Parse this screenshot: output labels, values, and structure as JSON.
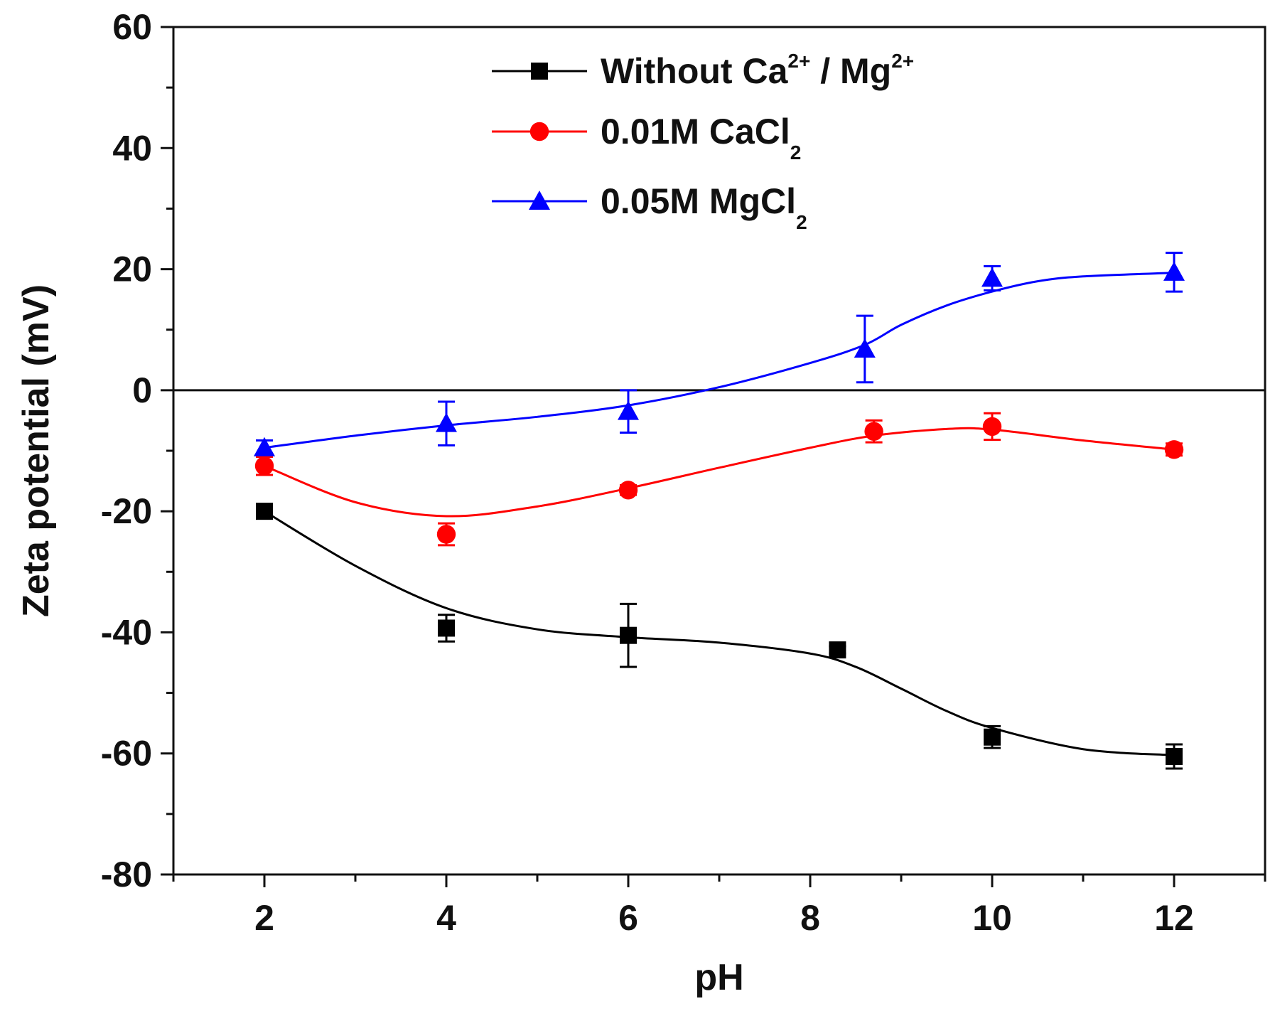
{
  "chart_data": {
    "type": "scatter",
    "title": "",
    "xlabel": "pH",
    "ylabel": "Zeta potential (mV)",
    "xlim": [
      1,
      13
    ],
    "ylim": [
      -80,
      60
    ],
    "x_ticks": [
      2,
      4,
      6,
      8,
      10,
      12
    ],
    "x_tick_labels": [
      "2",
      "4",
      "6",
      "8",
      "10",
      "12"
    ],
    "y_ticks": [
      -80,
      -60,
      -40,
      -20,
      0,
      20,
      40,
      60
    ],
    "y_tick_labels": [
      "-80",
      "-60",
      "-40",
      "-20",
      "0",
      "20",
      "40",
      "60"
    ],
    "zero_line": true,
    "grid": false,
    "legend_position": "top-center",
    "series": [
      {
        "name": "Without Ca / Mg",
        "name_parts": {
          "base": "Without Ca",
          "sup1": "2+",
          "mid": " / Mg",
          "sup2": "2+"
        },
        "color": "#000000",
        "marker": "square",
        "x": [
          2,
          4,
          6,
          8.3,
          10,
          12
        ],
        "y": [
          -20,
          -39.3,
          -40.5,
          -42.9,
          -57.3,
          -60.5
        ],
        "error": [
          1.2,
          2.2,
          5.2,
          0.6,
          1.8,
          2.0
        ],
        "fit_x": [
          2,
          3,
          4,
          5,
          6,
          7,
          8,
          8.5,
          9,
          9.5,
          10,
          11,
          12
        ],
        "fit_y": [
          -20,
          -29,
          -36,
          -39.5,
          -40.8,
          -41.7,
          -43.5,
          -45.7,
          -49.3,
          -53,
          -55.8,
          -59.3,
          -60.3
        ]
      },
      {
        "name": "0.01M CaCl2",
        "name_parts": {
          "base": "0.01M CaCl",
          "sub": "2"
        },
        "color": "#ff0000",
        "marker": "circle",
        "x": [
          2,
          4,
          6,
          8.7,
          10,
          12
        ],
        "y": [
          -12.5,
          -23.8,
          -16.5,
          -6.8,
          -6,
          -9.8
        ],
        "error": [
          1.5,
          1.8,
          0.8,
          1.8,
          2.2,
          1.0
        ],
        "fit_x": [
          2,
          3,
          4,
          5,
          6,
          7,
          8,
          8.7,
          9.5,
          10,
          11,
          12
        ],
        "fit_y": [
          -12.5,
          -18.5,
          -20.8,
          -19.2,
          -16.2,
          -12.8,
          -9.5,
          -7.5,
          -6.4,
          -6.5,
          -8.3,
          -9.8
        ]
      },
      {
        "name": "0.05M MgCl2",
        "name_parts": {
          "base": "0.05M MgCl",
          "sub": "2"
        },
        "color": "#0000ff",
        "marker": "triangle",
        "x": [
          2,
          4,
          6,
          8.6,
          10,
          12
        ],
        "y": [
          -9.5,
          -5.5,
          -3.5,
          6.8,
          18.5,
          19.5
        ],
        "error": [
          1.2,
          3.6,
          3.5,
          5.5,
          2.0,
          3.2
        ],
        "fit_x": [
          2,
          3,
          4,
          5,
          6,
          7,
          8,
          8.6,
          9,
          9.5,
          10,
          10.5,
          11,
          12
        ],
        "fit_y": [
          -9.5,
          -7.5,
          -5.8,
          -4.4,
          -2.5,
          0.5,
          4.5,
          7.5,
          10.8,
          14,
          16.3,
          18,
          18.8,
          19.4
        ]
      }
    ]
  }
}
